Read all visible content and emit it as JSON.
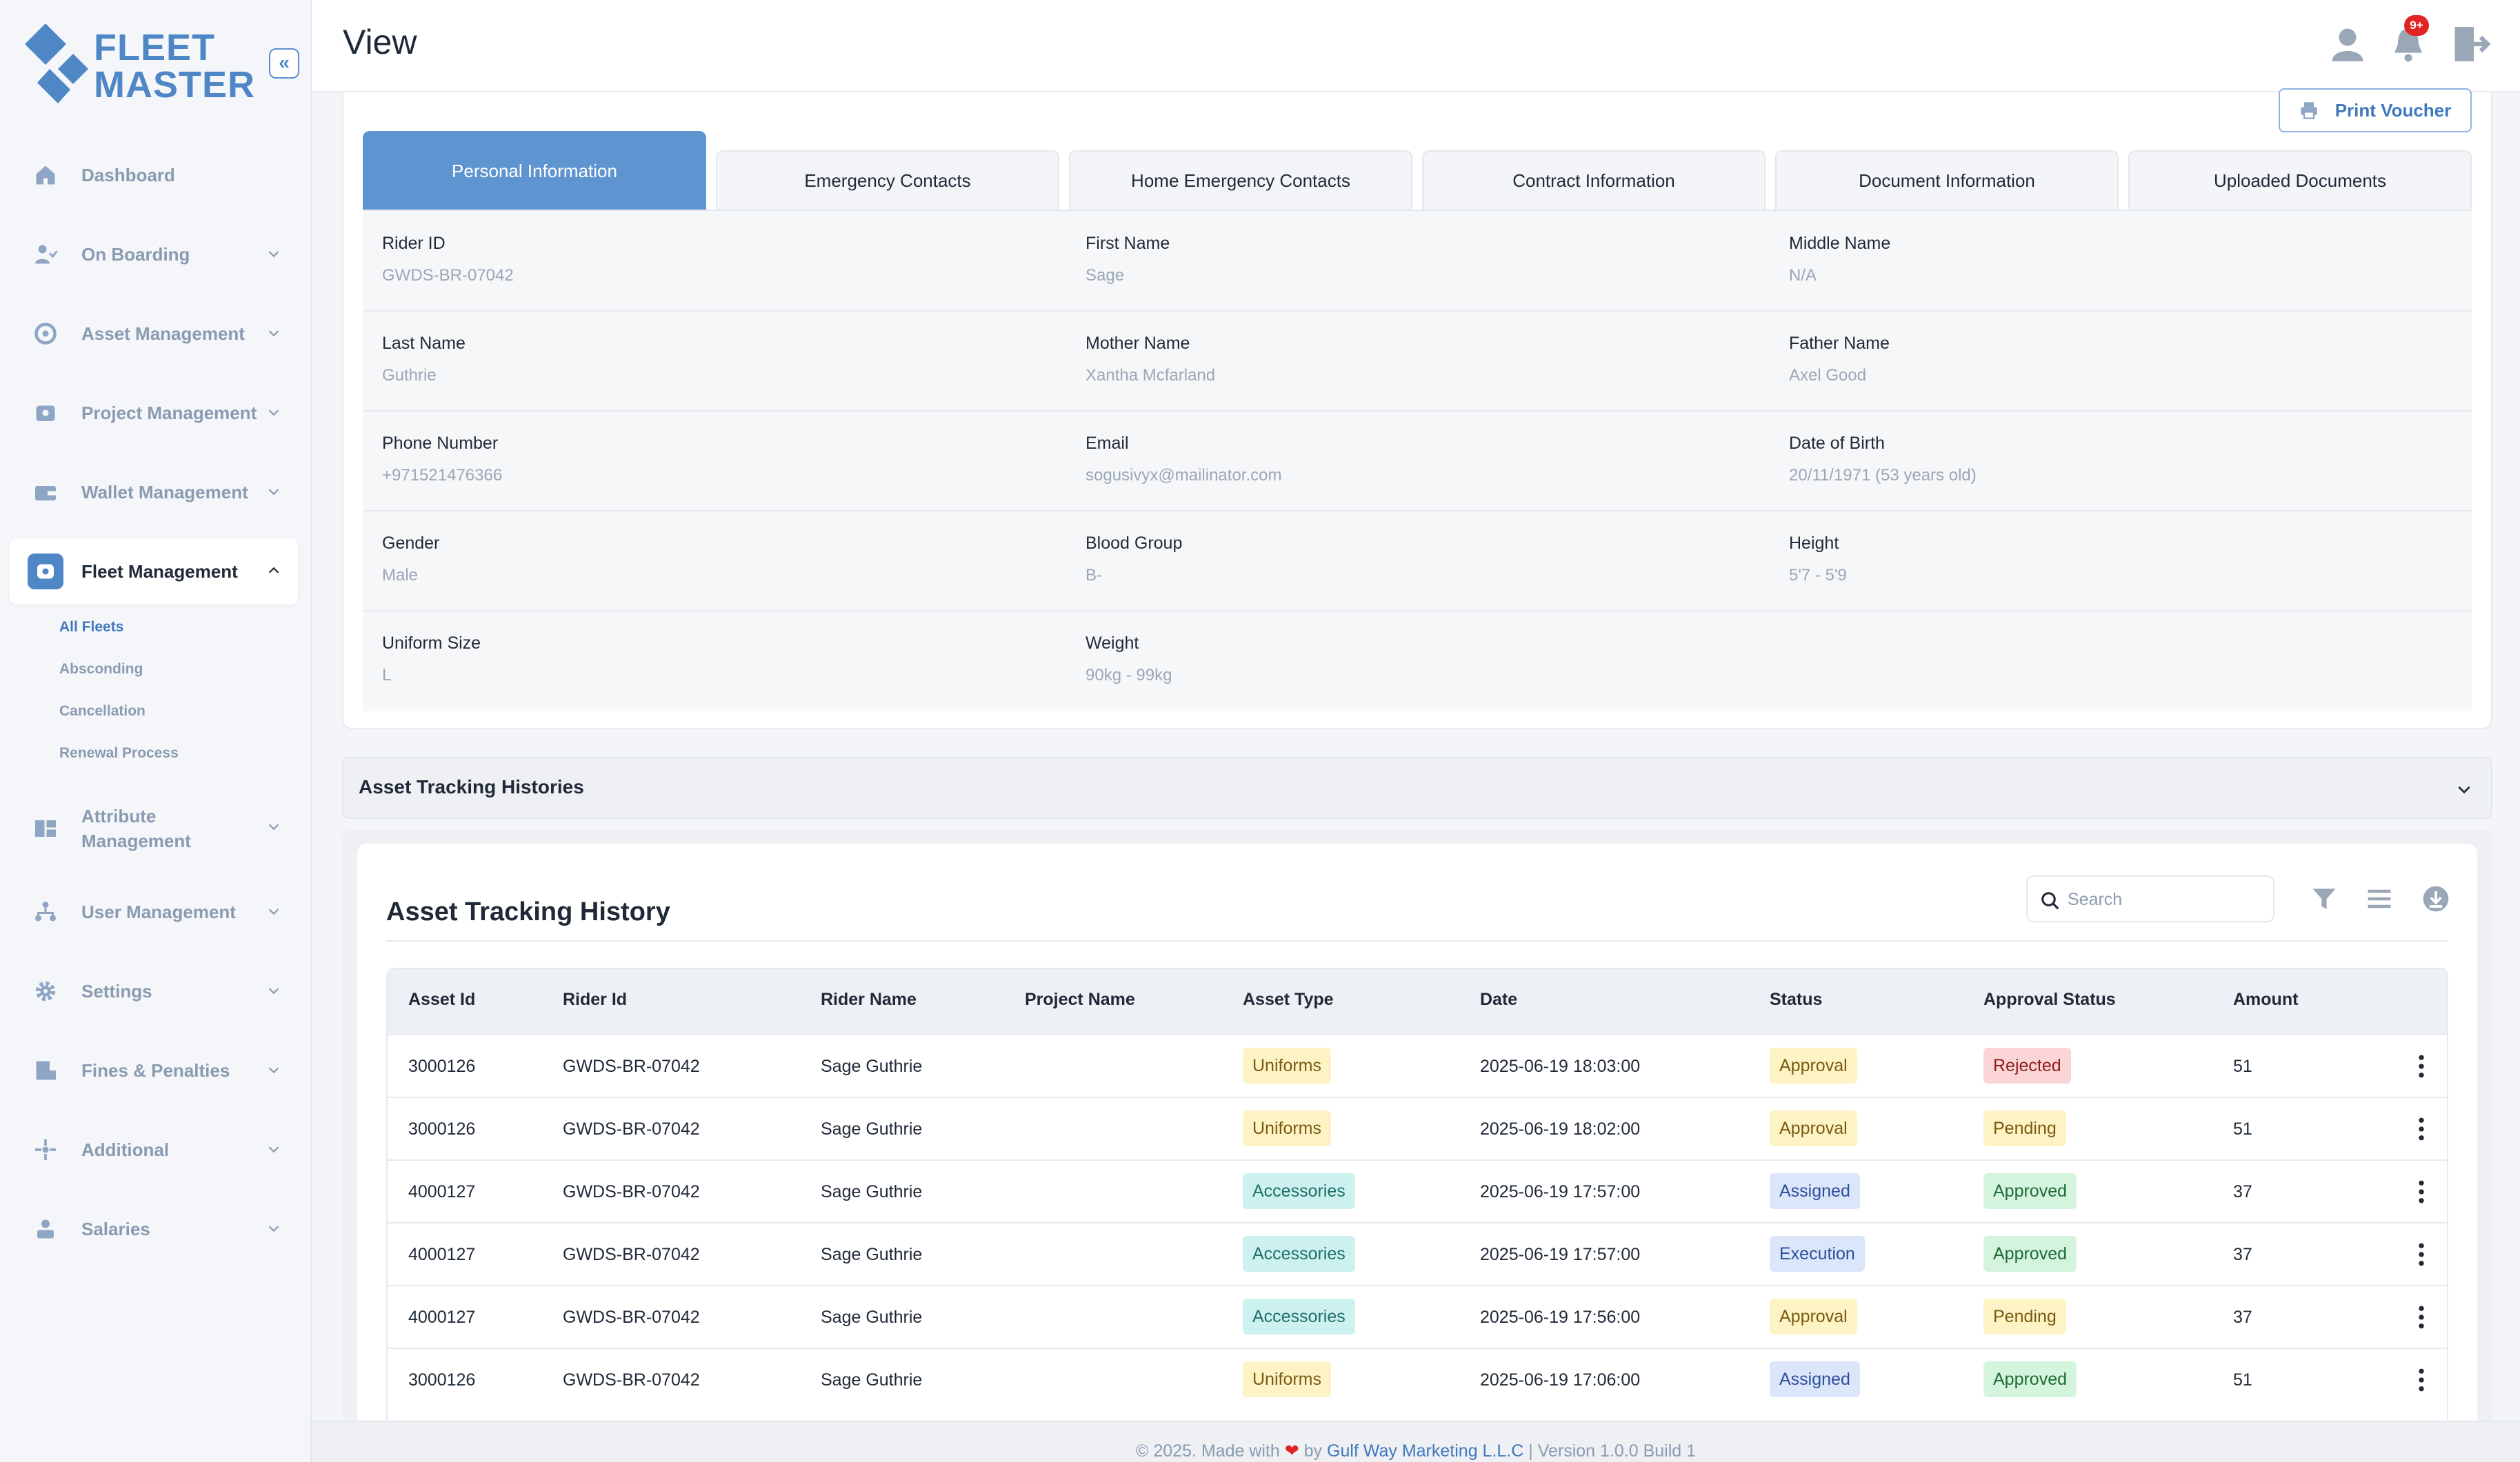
{
  "app": {
    "logo_line1": "FLEET",
    "logo_line2": "MASTER",
    "collapse_glyph": "«"
  },
  "sidebar": {
    "items": [
      {
        "label": "Dashboard",
        "icon": "home-icon"
      },
      {
        "label": "On Boarding",
        "icon": "onboarding-icon"
      },
      {
        "label": "Asset Management",
        "icon": "asset-icon"
      },
      {
        "label": "Project Management",
        "icon": "project-icon"
      },
      {
        "label": "Wallet Management",
        "icon": "wallet-icon"
      },
      {
        "label": "Fleet Management",
        "icon": "fleet-icon"
      },
      {
        "label": "Attribute Management",
        "icon": "attribute-icon"
      },
      {
        "label": "User Management",
        "icon": "users-icon"
      },
      {
        "label": "Settings",
        "icon": "gear-icon"
      },
      {
        "label": "Fines & Penalties",
        "icon": "fines-icon"
      },
      {
        "label": "Additional",
        "icon": "additional-icon"
      },
      {
        "label": "Salaries",
        "icon": "salary-icon"
      }
    ],
    "fleet_sub": [
      "All Fleets",
      "Absconding",
      "Cancellation",
      "Renewal Process"
    ]
  },
  "header": {
    "title": "View",
    "notification_badge": "9+"
  },
  "print_button": "Print Voucher",
  "tabs": [
    "Personal Information",
    "Emergency Contacts",
    "Home Emergency Contacts",
    "Contract Information",
    "Document Information",
    "Uploaded Documents"
  ],
  "personal": {
    "rows": [
      [
        {
          "k": "Rider ID",
          "v": "GWDS-BR-07042"
        },
        {
          "k": "First Name",
          "v": "Sage"
        },
        {
          "k": "Middle Name",
          "v": "N/A"
        }
      ],
      [
        {
          "k": "Last Name",
          "v": "Guthrie"
        },
        {
          "k": "Mother Name",
          "v": "Xantha Mcfarland"
        },
        {
          "k": "Father Name",
          "v": "Axel Good"
        }
      ],
      [
        {
          "k": "Phone Number",
          "v": "+971521476366"
        },
        {
          "k": "Email",
          "v": "sogusivyx@mailinator.com"
        },
        {
          "k": "Date of Birth",
          "v": "20/11/1971 (53 years old)"
        }
      ],
      [
        {
          "k": "Gender",
          "v": "Male"
        },
        {
          "k": "Blood Group",
          "v": "B-"
        },
        {
          "k": "Height",
          "v": "5'7 - 5'9"
        }
      ],
      [
        {
          "k": "Uniform Size",
          "v": "L"
        },
        {
          "k": "Weight",
          "v": "90kg - 99kg"
        }
      ]
    ]
  },
  "accordion": {
    "title": "Asset Tracking Histories"
  },
  "table": {
    "title": "Asset Tracking History",
    "search_placeholder": "Search",
    "headers": [
      "Asset Id",
      "Rider Id",
      "Rider Name",
      "Project Name",
      "Asset Type",
      "Date",
      "Status",
      "Approval Status",
      "Amount"
    ],
    "rows": [
      {
        "asset_id": "3000126",
        "rider_id": "GWDS-BR-07042",
        "rider_name": "Sage Guthrie",
        "project": "",
        "asset_type": "Uniforms",
        "date": "2025-06-19 18:03:00",
        "status": "Approval",
        "approval": "Rejected",
        "amount": "51"
      },
      {
        "asset_id": "3000126",
        "rider_id": "GWDS-BR-07042",
        "rider_name": "Sage Guthrie",
        "project": "",
        "asset_type": "Uniforms",
        "date": "2025-06-19 18:02:00",
        "status": "Approval",
        "approval": "Pending",
        "amount": "51"
      },
      {
        "asset_id": "4000127",
        "rider_id": "GWDS-BR-07042",
        "rider_name": "Sage Guthrie",
        "project": "",
        "asset_type": "Accessories",
        "date": "2025-06-19 17:57:00",
        "status": "Assigned",
        "approval": "Approved",
        "amount": "37"
      },
      {
        "asset_id": "4000127",
        "rider_id": "GWDS-BR-07042",
        "rider_name": "Sage Guthrie",
        "project": "",
        "asset_type": "Accessories",
        "date": "2025-06-19 17:57:00",
        "status": "Execution",
        "approval": "Approved",
        "amount": "37"
      },
      {
        "asset_id": "4000127",
        "rider_id": "GWDS-BR-07042",
        "rider_name": "Sage Guthrie",
        "project": "",
        "asset_type": "Accessories",
        "date": "2025-06-19 17:56:00",
        "status": "Approval",
        "approval": "Pending",
        "amount": "37"
      },
      {
        "asset_id": "3000126",
        "rider_id": "GWDS-BR-07042",
        "rider_name": "Sage Guthrie",
        "project": "",
        "asset_type": "Uniforms",
        "date": "2025-06-19 17:06:00",
        "status": "Assigned",
        "approval": "Approved",
        "amount": "51"
      }
    ]
  },
  "footer": {
    "prefix": "© 2025. Made with",
    "heart": "❤",
    "by": "by",
    "company": "Gulf Way Marketing L.L.C",
    "version": "| Version 1.0.0 Build 1"
  },
  "colors": {
    "accent": "#4f86c6",
    "active_tab": "#5e94cf",
    "badge": "#e02424"
  }
}
